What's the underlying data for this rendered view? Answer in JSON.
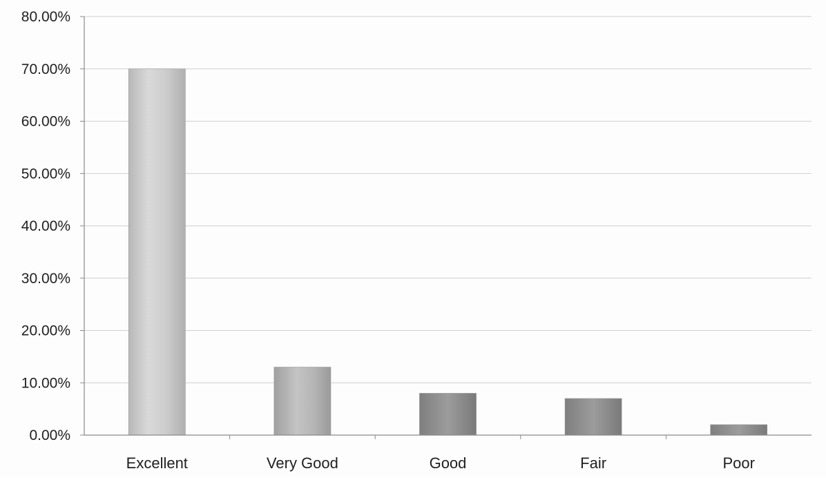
{
  "chart_data": {
    "type": "bar",
    "title": "",
    "xlabel": "",
    "ylabel": "",
    "categories": [
      "Excellent",
      "Very Good",
      "Good",
      "Fair",
      "Poor"
    ],
    "values": [
      70.0,
      13.0,
      8.0,
      7.0,
      2.0
    ],
    "value_unit": "%",
    "ylim": [
      0,
      80
    ],
    "yticks": [
      "0.00%",
      "10.00%",
      "20.00%",
      "30.00%",
      "40.00%",
      "50.00%",
      "60.00%",
      "70.00%",
      "80.00%"
    ],
    "grid": true,
    "legend": "none",
    "colors": {
      "bar_light": "#c9c9c9",
      "bar_dark": "#8c8c8c",
      "grid": "#d0d0d0",
      "axis": "#8a8a8a"
    }
  }
}
